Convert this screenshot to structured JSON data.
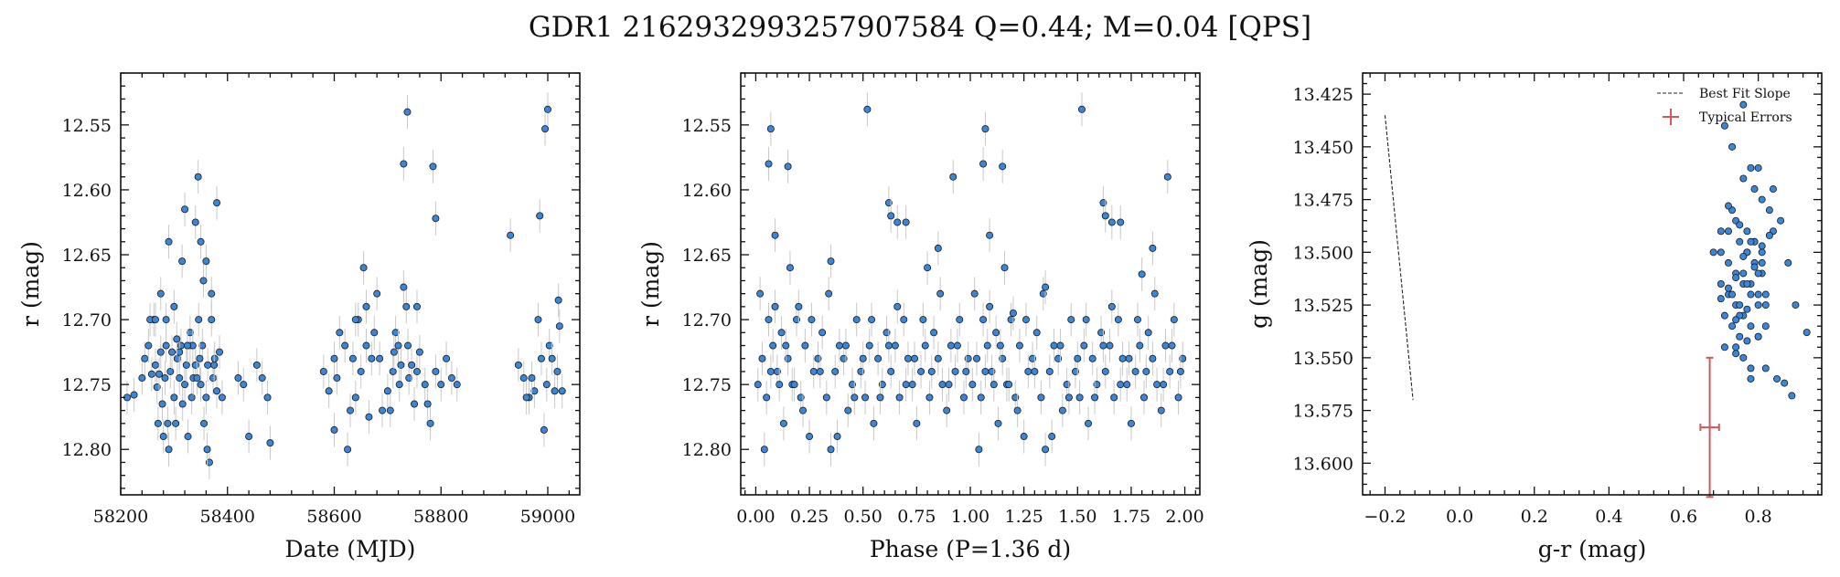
{
  "figure": {
    "title": "GDR1 2162932993257907584  Q=0.44; M=0.04 [QPS]"
  },
  "colors": {
    "point_fill": "#3a86d8",
    "point_edge": "#1a1a1a",
    "errorbar": "#c8c8c8",
    "typical_error": "#d0585c",
    "slope_line": "#222222"
  },
  "chart_data": [
    {
      "type": "scatter",
      "xlabel": "Date (MJD)",
      "ylabel": "r (mag)",
      "xlim": [
        58200,
        59060
      ],
      "ylim": [
        12.835,
        12.51
      ],
      "y_inverted": true,
      "xticks": [
        58200,
        58400,
        58600,
        58800,
        59000
      ],
      "xtick_labels": [
        "58200",
        "58400",
        "58600",
        "58800",
        "59000"
      ],
      "yticks": [
        12.55,
        12.6,
        12.65,
        12.7,
        12.75,
        12.8
      ],
      "ytick_labels": [
        "12.55",
        "12.60",
        "12.65",
        "12.70",
        "12.75",
        "12.80"
      ],
      "grid": false,
      "series": [
        {
          "x": [
            58212,
            58225,
            58240,
            58245,
            58252,
            58258,
            58262,
            58265,
            58268,
            58270,
            58272,
            58275,
            58278,
            58280,
            58283,
            58285,
            58288,
            58290,
            58293,
            58296,
            58300,
            58303,
            58306,
            58310,
            58313,
            58316,
            58320,
            58323,
            58326,
            58330,
            58333,
            58336,
            58340,
            58343,
            58346,
            58350,
            58353,
            58356,
            58360,
            58363,
            58366,
            58370,
            58373,
            58376,
            58380,
            58385,
            58390,
            58300,
            58320,
            58345,
            58360,
            58380,
            58340,
            58275,
            58255,
            58310,
            58330,
            58350,
            58370,
            58290,
            58265,
            58315,
            58335,
            58355,
            58375,
            58285,
            58305,
            58325,
            58348,
            58362,
            58420,
            58430,
            58440,
            58455,
            58465,
            58475,
            58480,
            58580,
            58590,
            58600,
            58605,
            58610,
            58620,
            58625,
            58630,
            58635,
            58640,
            58645,
            58650,
            58655,
            58660,
            58665,
            58670,
            58675,
            58680,
            58690,
            58700,
            58710,
            58715,
            58720,
            58725,
            58730,
            58735,
            58740,
            58745,
            58750,
            58755,
            58760,
            58770,
            58780,
            58790,
            58800,
            58810,
            58820,
            58830,
            58600,
            58640,
            58660,
            58685,
            58705,
            58722,
            58738,
            58755,
            58775,
            58712,
            58730,
            58737,
            58785,
            58790,
            58930,
            58945,
            58955,
            58965,
            58975,
            58982,
            58988,
            58993,
            58998,
            59003,
            59008,
            59013,
            59018,
            59022,
            59027,
            58995,
            59000,
            58985,
            59020,
            58960,
            58970
          ],
          "y": [
            12.76,
            12.758,
            12.745,
            12.73,
            12.72,
            12.742,
            12.7,
            12.735,
            12.752,
            12.78,
            12.742,
            12.725,
            12.765,
            12.79,
            12.745,
            12.72,
            12.78,
            12.8,
            12.74,
            12.725,
            12.76,
            12.78,
            12.73,
            12.745,
            12.72,
            12.765,
            12.75,
            12.735,
            12.79,
            12.72,
            12.76,
            12.745,
            12.735,
            12.745,
            12.7,
            12.75,
            12.72,
            12.78,
            12.76,
            12.735,
            12.81,
            12.7,
            12.745,
            12.73,
            12.755,
            12.725,
            12.76,
            12.69,
            12.615,
            12.59,
            12.655,
            12.61,
            12.625,
            12.68,
            12.7,
            12.725,
            12.71,
            12.64,
            12.68,
            12.64,
            12.7,
            12.655,
            12.72,
            12.67,
            12.735,
            12.7,
            12.715,
            12.72,
            12.73,
            12.8,
            12.745,
            12.75,
            12.79,
            12.735,
            12.745,
            12.76,
            12.795,
            12.74,
            12.755,
            12.785,
            12.745,
            12.71,
            12.72,
            12.8,
            12.77,
            12.73,
            12.76,
            12.7,
            12.74,
            12.66,
            12.72,
            12.775,
            12.73,
            12.71,
            12.68,
            12.77,
            12.755,
            12.74,
            12.71,
            12.72,
            12.735,
            12.675,
            12.69,
            12.745,
            12.735,
            12.765,
            12.74,
            12.725,
            12.75,
            12.78,
            12.74,
            12.75,
            12.73,
            12.745,
            12.75,
            12.73,
            12.7,
            12.69,
            12.73,
            12.77,
            12.75,
            12.72,
            12.69,
            12.765,
            12.725,
            12.58,
            12.54,
            12.582,
            12.622,
            12.635,
            12.735,
            12.745,
            12.76,
            12.755,
            12.7,
            12.73,
            12.785,
            12.75,
            12.72,
            12.73,
            12.755,
            12.74,
            12.705,
            12.755,
            12.553,
            12.538,
            12.62,
            12.685,
            12.76,
            12.745
          ],
          "yerr": 0.013
        }
      ]
    },
    {
      "type": "scatter",
      "xlabel": "Phase (P=1.36 d)",
      "ylabel": "r (mag)",
      "xlim": [
        -0.07,
        2.07
      ],
      "ylim": [
        12.835,
        12.51
      ],
      "y_inverted": true,
      "xticks": [
        0,
        0.25,
        0.5,
        0.75,
        1.0,
        1.25,
        1.5,
        1.75,
        2.0
      ],
      "xtick_labels": [
        "0.00",
        "0.25",
        "0.50",
        "0.75",
        "1.00",
        "1.25",
        "1.50",
        "1.75",
        "2.00"
      ],
      "yticks": [
        12.55,
        12.6,
        12.65,
        12.7,
        12.75,
        12.8
      ],
      "ytick_labels": [
        "12.55",
        "12.60",
        "12.65",
        "12.70",
        "12.75",
        "12.80"
      ],
      "grid": false,
      "series": [
        {
          "x": [
            0.01,
            0.03,
            0.05,
            0.06,
            0.08,
            0.1,
            0.12,
            0.13,
            0.15,
            0.17,
            0.19,
            0.21,
            0.23,
            0.25,
            0.27,
            0.29,
            0.31,
            0.33,
            0.35,
            0.37,
            0.39,
            0.41,
            0.43,
            0.45,
            0.47,
            0.49,
            0.51,
            0.53,
            0.55,
            0.57,
            0.59,
            0.61,
            0.63,
            0.65,
            0.67,
            0.69,
            0.71,
            0.73,
            0.75,
            0.77,
            0.79,
            0.81,
            0.83,
            0.85,
            0.87,
            0.89,
            0.91,
            0.93,
            0.95,
            0.97,
            0.99,
            0.02,
            0.04,
            0.07,
            0.09,
            0.11,
            0.14,
            0.16,
            0.18,
            0.22,
            0.26,
            0.3,
            0.34,
            0.38,
            0.42,
            0.46,
            0.5,
            0.54,
            0.58,
            0.62,
            0.66,
            0.7,
            0.74,
            0.78,
            0.82,
            0.86,
            0.9,
            0.94,
            0.98,
            0.06,
            0.07,
            0.09,
            0.15,
            0.52,
            0.62,
            0.63,
            0.66,
            0.7,
            0.85,
            0.92,
            1.01,
            1.03,
            1.05,
            1.06,
            1.08,
            1.1,
            1.12,
            1.13,
            1.15,
            1.17,
            1.19,
            1.21,
            1.23,
            1.25,
            1.27,
            1.29,
            1.31,
            1.33,
            1.35,
            1.37,
            1.39,
            1.41,
            1.43,
            1.45,
            1.47,
            1.49,
            1.51,
            1.53,
            1.55,
            1.57,
            1.59,
            1.61,
            1.63,
            1.65,
            1.67,
            1.69,
            1.71,
            1.73,
            1.75,
            1.77,
            1.79,
            1.81,
            1.83,
            1.85,
            1.87,
            1.89,
            1.91,
            1.93,
            1.95,
            1.97,
            1.99,
            1.02,
            1.04,
            1.07,
            1.09,
            1.11,
            1.14,
            1.16,
            1.18,
            1.22,
            1.26,
            1.3,
            1.34,
            1.38,
            1.42,
            1.46,
            1.5,
            1.54,
            1.58,
            1.62,
            1.66,
            1.7,
            1.74,
            1.78,
            1.82,
            1.86,
            1.9,
            1.94,
            1.98,
            1.06,
            1.07,
            1.09,
            1.15,
            1.52,
            1.62,
            1.63,
            1.66,
            1.7,
            1.85,
            1.92,
            0.35,
            1.35,
            0.8,
            1.8,
            0.2,
            1.2
          ],
          "y": [
            12.75,
            12.73,
            12.76,
            12.7,
            12.72,
            12.74,
            12.71,
            12.78,
            12.73,
            12.75,
            12.7,
            12.76,
            12.72,
            12.79,
            12.74,
            12.73,
            12.71,
            12.76,
            12.8,
            12.74,
            12.72,
            12.73,
            12.77,
            12.75,
            12.7,
            12.74,
            12.76,
            12.72,
            12.78,
            12.73,
            12.75,
            12.71,
            12.74,
            12.72,
            12.76,
            12.7,
            12.73,
            12.75,
            12.78,
            12.74,
            12.72,
            12.76,
            12.71,
            12.73,
            12.75,
            12.77,
            12.72,
            12.74,
            12.7,
            12.76,
            12.73,
            12.68,
            12.8,
            12.74,
            12.69,
            12.75,
            12.72,
            12.66,
            12.75,
            12.77,
            12.7,
            12.74,
            12.68,
            12.79,
            12.72,
            12.76,
            12.73,
            12.7,
            12.76,
            12.72,
            12.69,
            12.75,
            12.73,
            12.7,
            12.74,
            12.68,
            12.75,
            12.72,
            12.74,
            12.58,
            12.553,
            12.635,
            12.582,
            12.538,
            12.61,
            12.62,
            12.625,
            12.625,
            12.645,
            12.59,
            12.75,
            12.73,
            12.76,
            12.7,
            12.72,
            12.74,
            12.71,
            12.78,
            12.73,
            12.75,
            12.7,
            12.76,
            12.72,
            12.79,
            12.74,
            12.73,
            12.71,
            12.76,
            12.8,
            12.74,
            12.72,
            12.73,
            12.77,
            12.75,
            12.7,
            12.74,
            12.76,
            12.72,
            12.78,
            12.73,
            12.75,
            12.71,
            12.74,
            12.72,
            12.76,
            12.7,
            12.73,
            12.75,
            12.78,
            12.74,
            12.72,
            12.76,
            12.71,
            12.73,
            12.75,
            12.77,
            12.72,
            12.74,
            12.7,
            12.76,
            12.73,
            12.68,
            12.8,
            12.74,
            12.69,
            12.75,
            12.72,
            12.66,
            12.75,
            12.77,
            12.7,
            12.74,
            12.68,
            12.79,
            12.72,
            12.76,
            12.73,
            12.7,
            12.76,
            12.72,
            12.69,
            12.75,
            12.73,
            12.7,
            12.74,
            12.68,
            12.75,
            12.72,
            12.74,
            12.58,
            12.553,
            12.635,
            12.582,
            12.538,
            12.61,
            12.62,
            12.625,
            12.625,
            12.645,
            12.59,
            12.655,
            12.675,
            12.66,
            12.665,
            12.69,
            12.695
          ],
          "yerr": 0.013
        }
      ]
    },
    {
      "type": "scatter",
      "xlabel": "g-r (mag)",
      "ylabel": "g (mag)",
      "xlim": [
        -0.26,
        0.97
      ],
      "ylim": [
        13.615,
        13.415
      ],
      "y_inverted": true,
      "xticks": [
        -0.2,
        0.0,
        0.2,
        0.4,
        0.6,
        0.8
      ],
      "xtick_labels": [
        "−0.2",
        "0.0",
        "0.2",
        "0.4",
        "0.6",
        "0.8"
      ],
      "yticks": [
        13.425,
        13.45,
        13.475,
        13.5,
        13.525,
        13.55,
        13.575,
        13.6
      ],
      "ytick_labels": [
        "13.425",
        "13.450",
        "13.475",
        "13.500",
        "13.525",
        "13.550",
        "13.575",
        "13.600"
      ],
      "grid": false,
      "legend": {
        "location": "top-right",
        "entries": [
          "Best Fit Slope",
          "Typical Errors"
        ]
      },
      "best_fit_slope": {
        "x": [
          -0.2,
          -0.125
        ],
        "y": [
          13.435,
          13.57
        ]
      },
      "typical_error": {
        "x": 0.67,
        "y": 13.583,
        "xerr": 0.025,
        "yerr": 0.033
      },
      "series": [
        {
          "x": [
            0.7,
            0.72,
            0.74,
            0.76,
            0.78,
            0.8,
            0.71,
            0.73,
            0.75,
            0.77,
            0.79,
            0.81,
            0.72,
            0.74,
            0.76,
            0.78,
            0.8,
            0.82,
            0.73,
            0.75,
            0.77,
            0.79,
            0.81,
            0.7,
            0.72,
            0.74,
            0.76,
            0.78,
            0.8,
            0.71,
            0.73,
            0.75,
            0.77,
            0.79,
            0.81,
            0.74,
            0.76,
            0.78,
            0.8,
            0.82,
            0.75,
            0.77,
            0.79,
            0.81,
            0.83,
            0.84,
            0.86,
            0.88,
            0.9,
            0.93,
            0.72,
            0.76,
            0.8,
            0.84,
            0.78,
            0.82,
            0.74,
            0.7,
            0.68,
            0.71,
            0.73,
            0.85,
            0.87,
            0.89,
            0.76,
            0.78,
            0.8,
            0.82,
            0.74,
            0.77,
            0.79,
            0.81,
            0.83,
            0.75,
            0.77,
            0.72,
            0.7,
            0.74,
            0.76,
            0.78
          ],
          "y": [
            13.5,
            13.505,
            13.51,
            13.515,
            13.52,
            13.525,
            13.53,
            13.535,
            13.54,
            13.5,
            13.495,
            13.505,
            13.49,
            13.485,
            13.51,
            13.515,
            13.52,
            13.525,
            13.48,
            13.495,
            13.5,
            13.505,
            13.51,
            13.515,
            13.52,
            13.525,
            13.53,
            13.535,
            13.54,
            13.545,
            13.52,
            13.525,
            13.49,
            13.495,
            13.5,
            13.545,
            13.55,
            13.555,
            13.54,
            13.535,
            13.53,
            13.515,
            13.47,
            13.475,
            13.48,
            13.47,
            13.485,
            13.505,
            13.525,
            13.538,
            13.478,
            13.465,
            13.46,
            13.49,
            13.56,
            13.555,
            13.548,
            13.49,
            13.5,
            13.44,
            13.45,
            13.56,
            13.562,
            13.568,
            13.43,
            13.46,
            13.51,
            13.52,
            13.532,
            13.542,
            13.507,
            13.497,
            13.492,
            13.487,
            13.527,
            13.517,
            13.522,
            13.512,
            13.502,
            13.495
          ]
        }
      ]
    }
  ]
}
